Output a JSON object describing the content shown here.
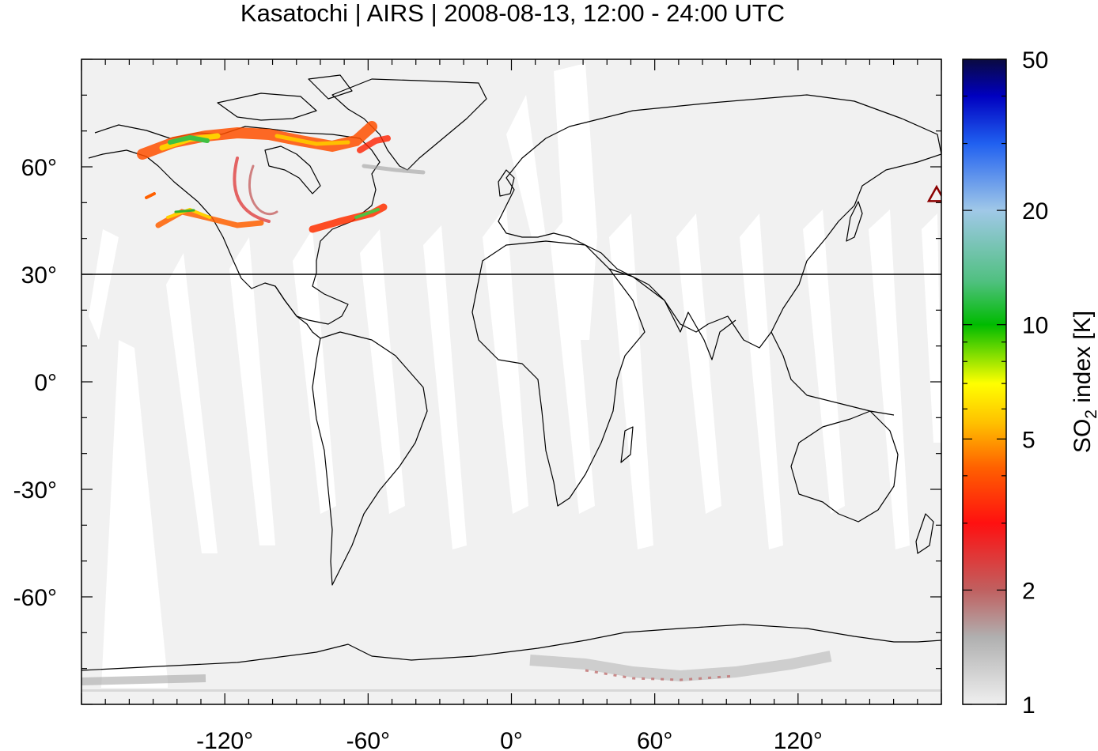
{
  "title": "Kasatochi | AIRS | 2008-08-13, 12:00 - 24:00 UTC",
  "map": {
    "lon_range": [
      -180,
      180
    ],
    "lat_range": [
      -90,
      90
    ],
    "x_ticks": [
      -120,
      -60,
      0,
      60,
      120
    ],
    "y_ticks": [
      60,
      30,
      0,
      -30,
      -60
    ],
    "x_tick_labels": [
      "-120°",
      "-60°",
      "0°",
      "60°",
      "120°"
    ],
    "y_tick_labels": [
      "60°",
      "30°",
      "0°",
      "-30°",
      "-60°"
    ],
    "reference_line_lat": 30,
    "volcano": {
      "name_icon": "triangle-volcano-marker",
      "lon": 178.0,
      "lat": 52.2,
      "color": "#8b0000"
    },
    "background_color": "#f1f1f1",
    "gap_color": "#ffffff"
  },
  "colorbar": {
    "ticks": [
      1,
      2,
      5,
      10,
      20,
      50
    ],
    "tick_labels": [
      "1",
      "2",
      "5",
      "10",
      "20",
      "50"
    ],
    "label_prefix": "SO",
    "label_sub": "2",
    "label_suffix": " index [K]",
    "scale": "log",
    "stops": [
      {
        "v": 1,
        "c": "#efefef"
      },
      {
        "v": 1.5,
        "c": "#b0b0b0"
      },
      {
        "v": 2,
        "c": "#c06060"
      },
      {
        "v": 3,
        "c": "#ff1010"
      },
      {
        "v": 4.2,
        "c": "#ff6000"
      },
      {
        "v": 5.5,
        "c": "#ffc000"
      },
      {
        "v": 7,
        "c": "#ffff00"
      },
      {
        "v": 10,
        "c": "#00bb00"
      },
      {
        "v": 13,
        "c": "#50c080"
      },
      {
        "v": 20,
        "c": "#a0c8e8"
      },
      {
        "v": 30,
        "c": "#2060f0"
      },
      {
        "v": 40,
        "c": "#0000c0"
      },
      {
        "v": 50,
        "c": "#0a0a40"
      }
    ]
  }
}
